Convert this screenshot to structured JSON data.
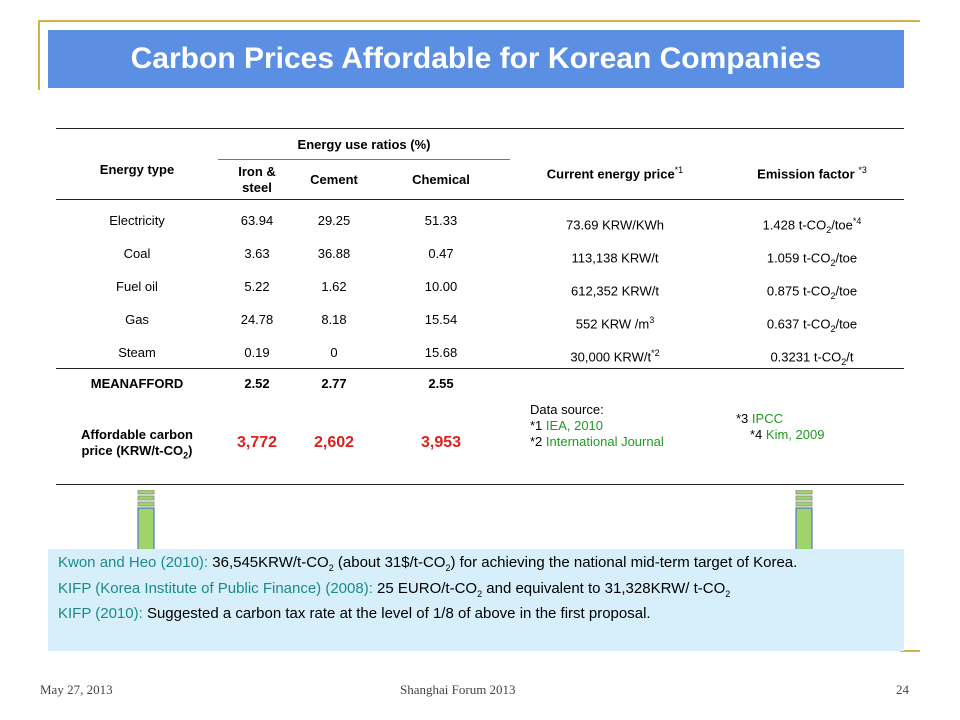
{
  "title": "Carbon Prices Affordable for Korean Companies",
  "table": {
    "col_energy_type": "Energy type",
    "col_energy_use_ratios": "Energy use ratios (%)",
    "col_iron_line1": "Iron &",
    "col_iron_line2": "steel",
    "col_cement": "Cement",
    "col_chemical": "Chemical",
    "col_price": "Current energy price",
    "col_price_sup": "*1",
    "col_emission": "Emission factor",
    "col_emission_sup": "*3",
    "rows": [
      {
        "type": "Electricity",
        "iron": "63.94",
        "cement": "29.25",
        "chemical": "51.33",
        "price": "73.69 KRW/KWh",
        "price_sup": "",
        "ef": "1.428 t-CO",
        "ef_sub": "2",
        "ef_tail": "/toe",
        "ef_sup": "*4"
      },
      {
        "type": "Coal",
        "iron": "3.63",
        "cement": "36.88",
        "chemical": "0.47",
        "price": "113,138 KRW/t",
        "price_sup": "",
        "ef": "1.059 t-CO",
        "ef_sub": "2",
        "ef_tail": "/toe",
        "ef_sup": ""
      },
      {
        "type": "Fuel oil",
        "iron": "5.22",
        "cement": "1.62",
        "chemical": "10.00",
        "price": "612,352 KRW/t",
        "price_sup": "",
        "ef": "0.875 t-CO",
        "ef_sub": "2",
        "ef_tail": "/toe",
        "ef_sup": ""
      },
      {
        "type": "Gas",
        "iron": "24.78",
        "cement": "8.18",
        "chemical": "15.54",
        "price": "552 KRW /m",
        "price_sup": "3",
        "ef": "0.637 t-CO",
        "ef_sub": "2",
        "ef_tail": "/toe",
        "ef_sup": ""
      },
      {
        "type": "Steam",
        "iron": "0.19",
        "cement": "0",
        "chemical": "15.68",
        "price": "30,000 KRW/t",
        "price_sup": "*2",
        "ef": "0.3231 t-CO",
        "ef_sub": "2",
        "ef_tail": "/t",
        "ef_sup": ""
      }
    ],
    "meanafford_label": "MEANAFFORD",
    "meanafford": {
      "iron": "2.52",
      "cement": "2.77",
      "chemical": "2.55"
    },
    "afford_label_line1": "Affordable carbon",
    "afford_label_line2": "price (KRW/t-CO",
    "afford_label_sub": "2",
    "afford_label_tail": ")",
    "afford": {
      "iron": "3,772",
      "cement": "2,602",
      "chemical": "3,953"
    },
    "sources": {
      "heading": "Data source:",
      "s1_key": "*1 ",
      "s1_val": "IEA, 2010",
      "s2_key": "*2 ",
      "s2_val": "International Journal",
      "s3_key": "*3 ",
      "s3_val": "IPCC",
      "s4_key": "*4 ",
      "s4_val": "Kim, 2009"
    }
  },
  "notes": {
    "n1_src": "Kwon and Heo (2010): ",
    "n1_a": "36,545KRW/t-CO",
    "n1_b": " (about 31$/t-CO",
    "n1_c": ") for achieving the national mid-term target of  Korea.",
    "n2_src": "KIFP (Korea Institute of Public Finance) (2008): ",
    "n2_a": "25 EURO/t-CO",
    "n2_b": " and equivalent to 31,328KRW/ t-CO",
    "n3_src": "KIFP (2010): ",
    "n3_a": "Suggested a carbon tax rate at the level of 1/8 of above in the first proposal.",
    "sub2": "2"
  },
  "footer": {
    "date": "May 27, 2013",
    "event": "Shanghai Forum 2013",
    "page": "24"
  },
  "colors": {
    "title_bg": "#5b8fe3",
    "accent_red": "#e0201c",
    "source_green": "#1f9a1f",
    "note_bg": "#d6effb",
    "arrow_fill": "#9fd46a"
  }
}
